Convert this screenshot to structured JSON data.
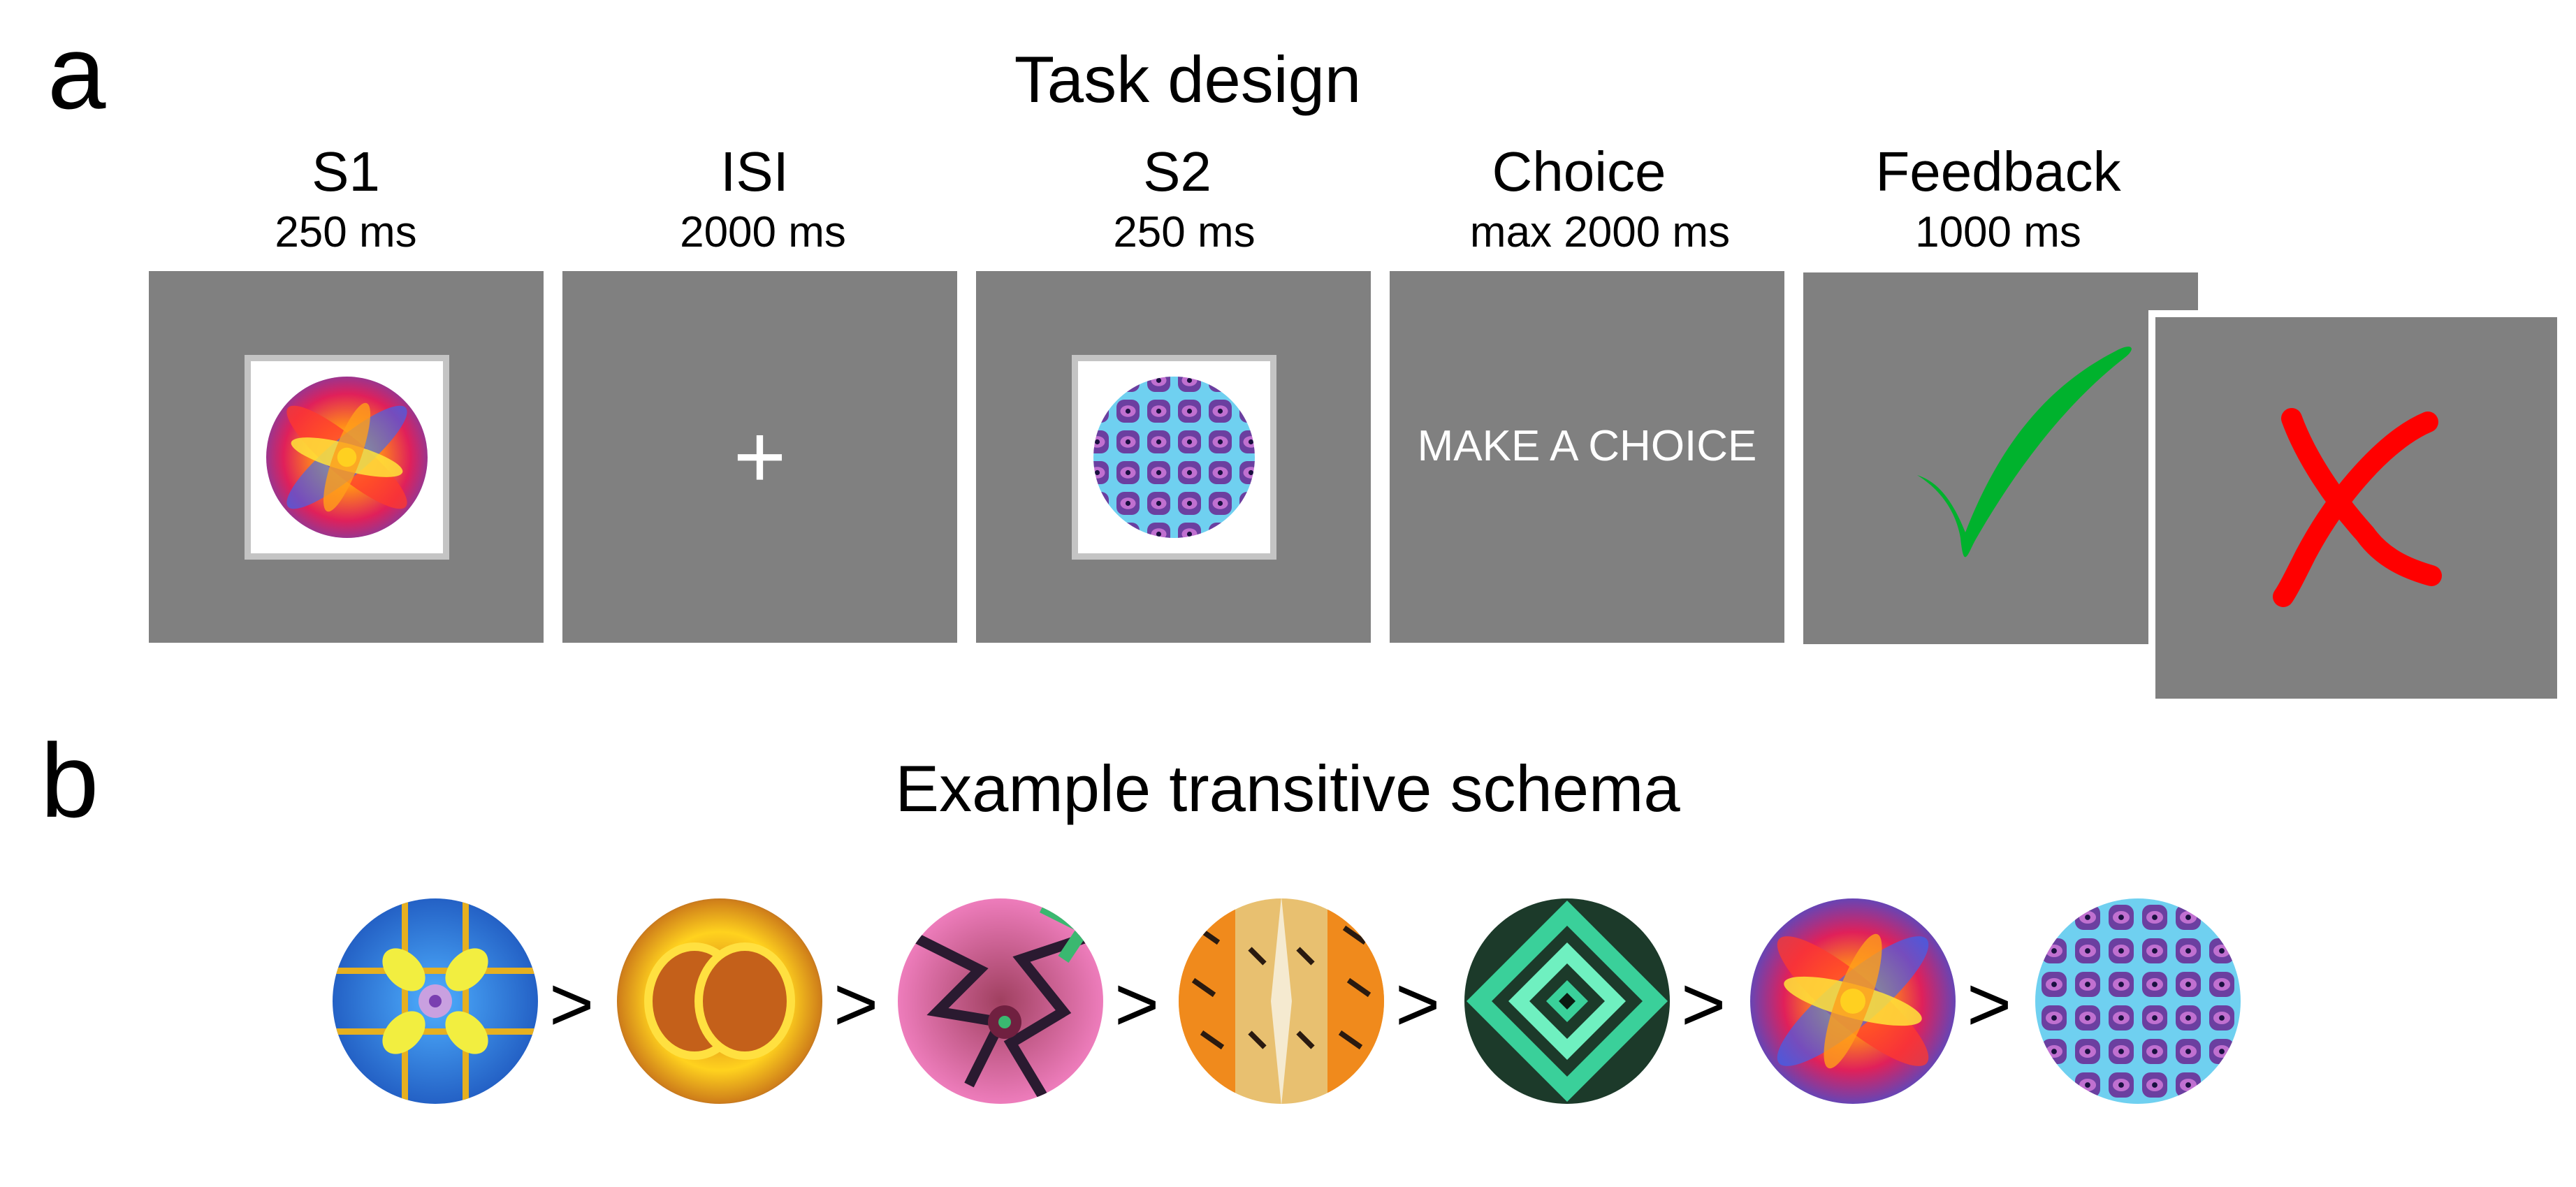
{
  "panel_a": {
    "letter": "a",
    "title": "Task design",
    "stages": [
      {
        "name": "S1",
        "duration": "250 ms"
      },
      {
        "name": "ISI",
        "duration": "2000 ms"
      },
      {
        "name": "S2",
        "duration": "250 ms"
      },
      {
        "name": "Choice",
        "duration": "max 2000 ms"
      },
      {
        "name": "Feedback",
        "duration": "1000 ms"
      }
    ],
    "fixation": "+",
    "choice_prompt": "MAKE A CHOICE",
    "feedback": {
      "correct_color": "#00b22d",
      "incorrect_color": "#ff0000"
    },
    "screen_color": "#808080"
  },
  "panel_b": {
    "letter": "b",
    "title": "Example transitive schema",
    "relation_symbol": ">",
    "stimulus_count": 7
  }
}
